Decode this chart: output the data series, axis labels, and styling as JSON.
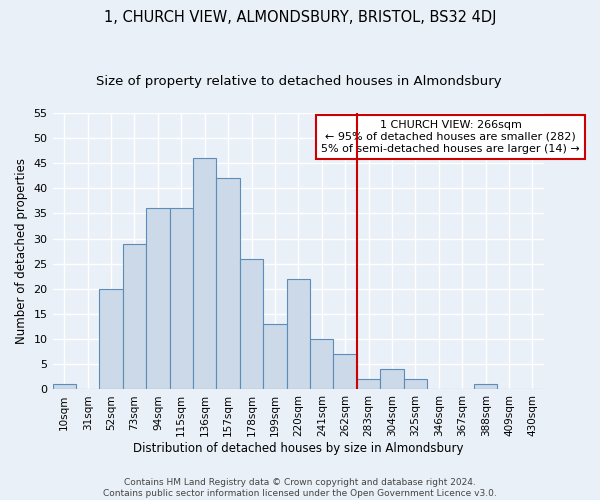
{
  "title": "1, CHURCH VIEW, ALMONDSBURY, BRISTOL, BS32 4DJ",
  "subtitle": "Size of property relative to detached houses in Almondsbury",
  "xlabel": "Distribution of detached houses by size in Almondsbury",
  "ylabel": "Number of detached properties",
  "bar_labels": [
    "10sqm",
    "31sqm",
    "52sqm",
    "73sqm",
    "94sqm",
    "115sqm",
    "136sqm",
    "157sqm",
    "178sqm",
    "199sqm",
    "220sqm",
    "241sqm",
    "262sqm",
    "283sqm",
    "304sqm",
    "325sqm",
    "346sqm",
    "367sqm",
    "388sqm",
    "409sqm",
    "430sqm"
  ],
  "bar_values": [
    1,
    0,
    20,
    29,
    36,
    36,
    46,
    42,
    26,
    13,
    22,
    10,
    7,
    2,
    4,
    2,
    0,
    0,
    1,
    0,
    0
  ],
  "bar_color": "#ccd9e8",
  "bar_edge_color": "#5b8db8",
  "bg_color": "#eaf0f8",
  "grid_color": "#ffffff",
  "vline_color": "#cc0000",
  "annotation_text": "1 CHURCH VIEW: 266sqm\n← 95% of detached houses are smaller (282)\n5% of semi-detached houses are larger (14) →",
  "annotation_box_color": "#ffffff",
  "annotation_box_edge": "#cc0000",
  "ylim": [
    0,
    55
  ],
  "yticks": [
    0,
    5,
    10,
    15,
    20,
    25,
    30,
    35,
    40,
    45,
    50,
    55
  ],
  "footer_line1": "Contains HM Land Registry data © Crown copyright and database right 2024.",
  "footer_line2": "Contains public sector information licensed under the Open Government Licence v3.0.",
  "title_fontsize": 10.5,
  "subtitle_fontsize": 9.5,
  "tick_fontsize": 7.5,
  "ylabel_fontsize": 8.5,
  "xlabel_fontsize": 8.5,
  "annotation_fontsize": 8.0,
  "footer_fontsize": 6.5
}
